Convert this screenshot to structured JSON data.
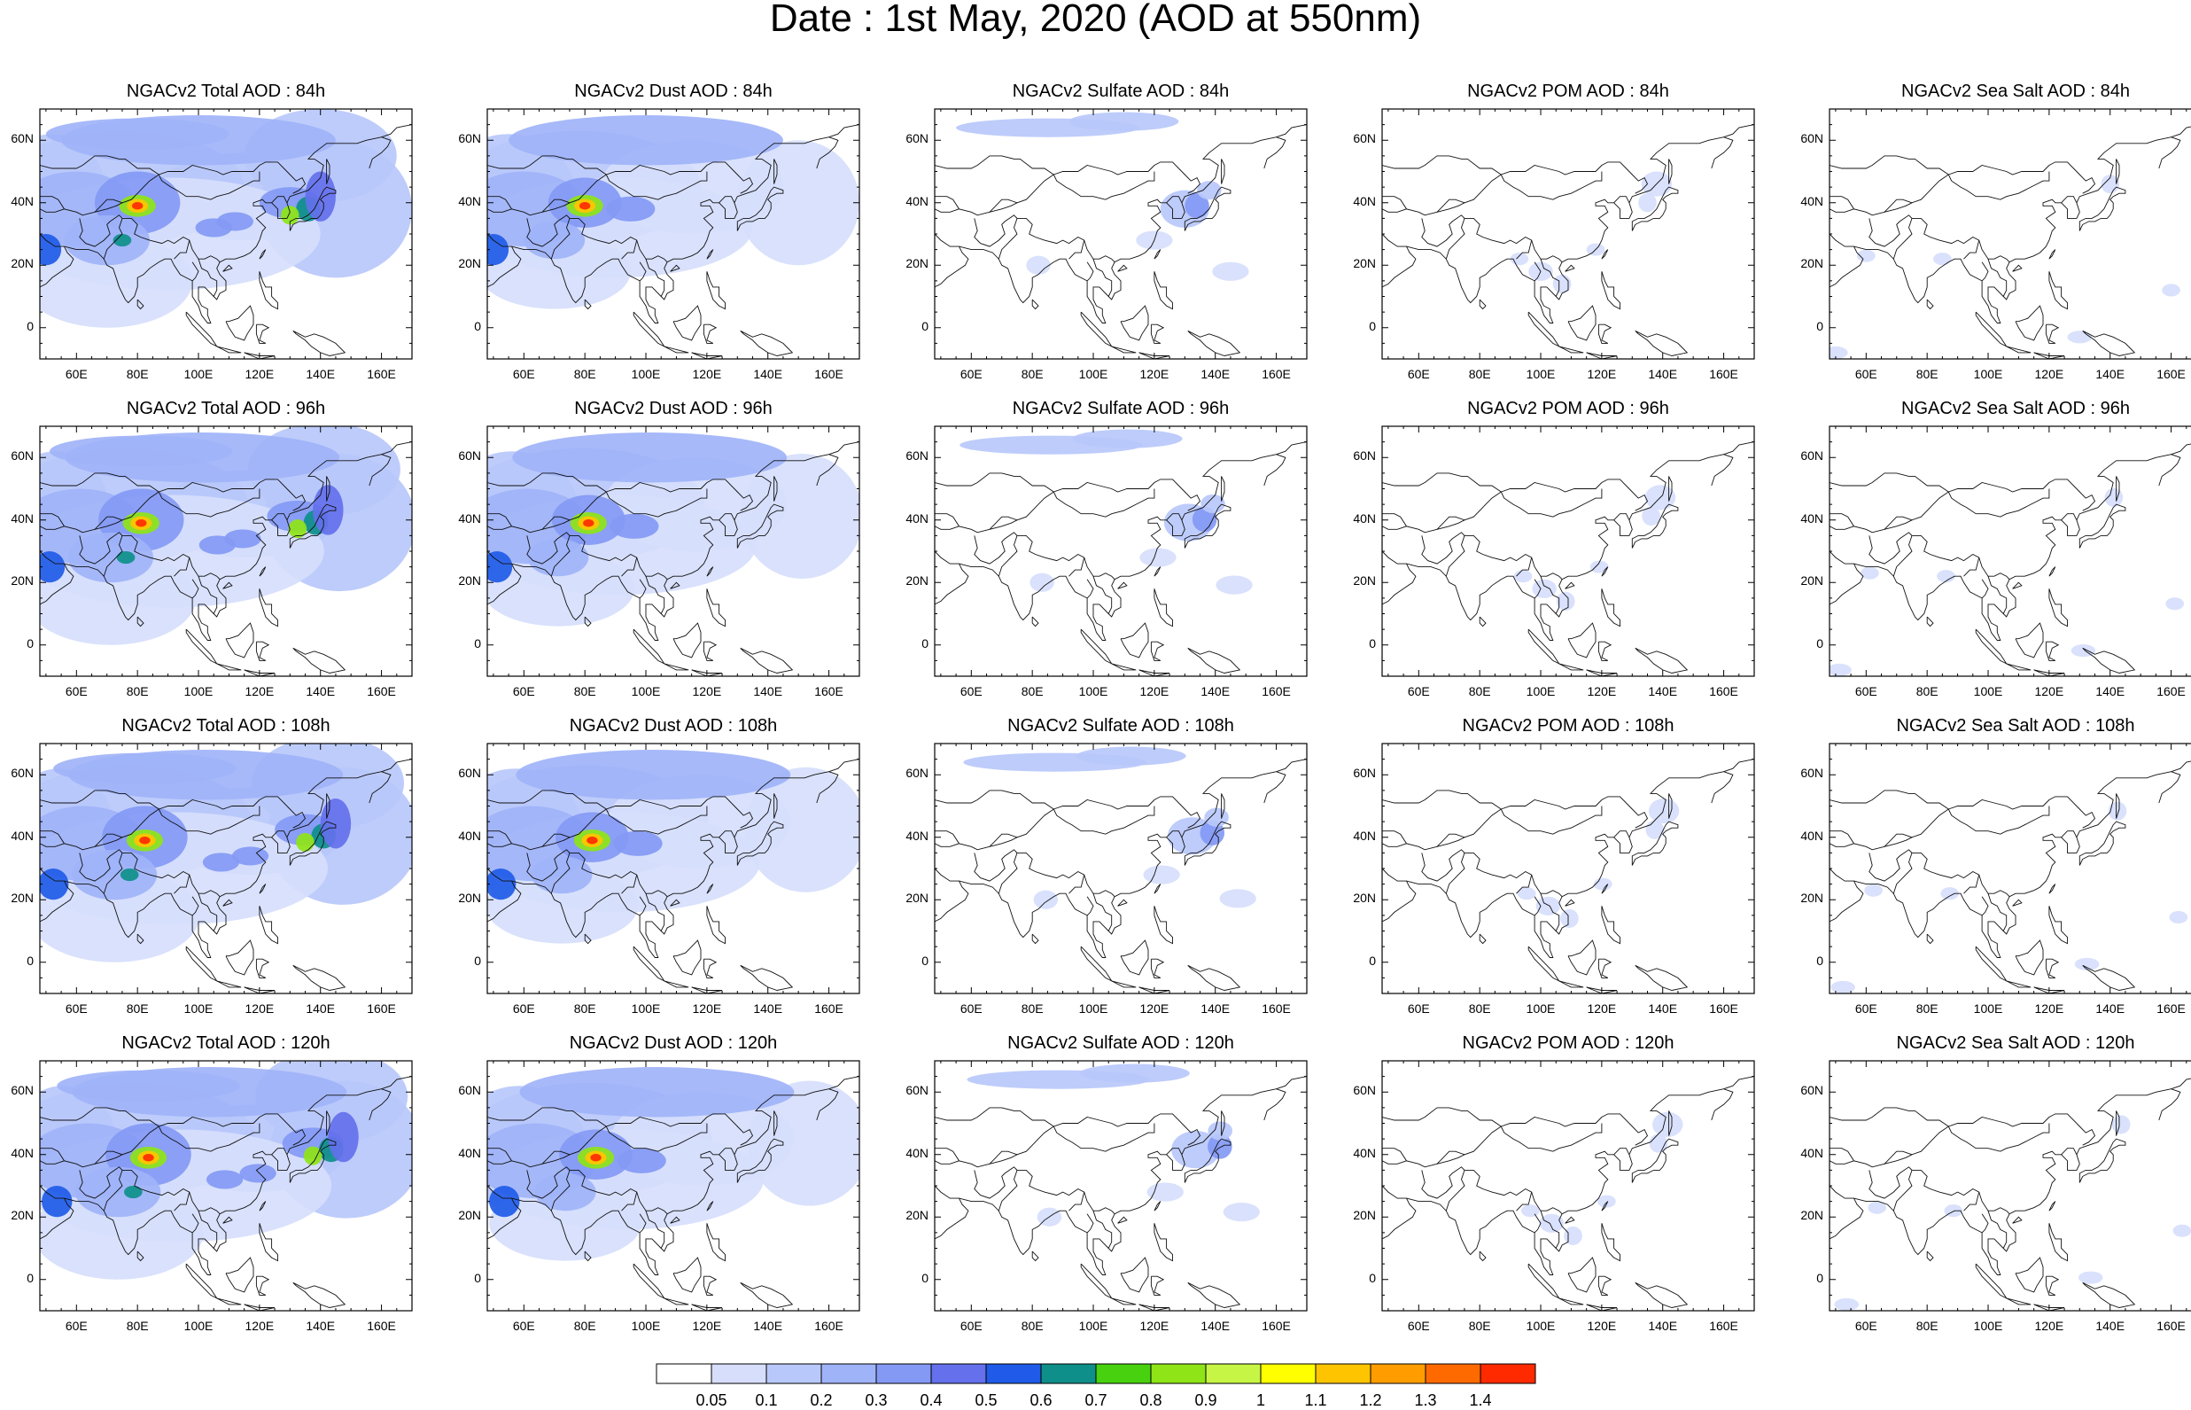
{
  "figure": {
    "title": "Date : 1st May, 2020 (AOD at 550nm)"
  },
  "lat_labels": [
    "60N",
    "40N",
    "20N",
    "0"
  ],
  "lon_labels": [
    "60E",
    "80E",
    "100E",
    "120E",
    "140E",
    "160E"
  ],
  "panels": [
    {
      "title": "NGACv2 Total AOD : 84h",
      "species": "total",
      "lead_hours": 84
    },
    {
      "title": "NGACv2 Dust AOD : 84h",
      "species": "dust",
      "lead_hours": 84
    },
    {
      "title": "NGACv2 Sulfate AOD : 84h",
      "species": "sulfate",
      "lead_hours": 84
    },
    {
      "title": "NGACv2 POM AOD : 84h",
      "species": "pom",
      "lead_hours": 84
    },
    {
      "title": "NGACv2 Sea Salt AOD : 84h",
      "species": "seasalt",
      "lead_hours": 84
    },
    {
      "title": "NGACv2 Total AOD : 96h",
      "species": "total",
      "lead_hours": 96
    },
    {
      "title": "NGACv2 Dust AOD : 96h",
      "species": "dust",
      "lead_hours": 96
    },
    {
      "title": "NGACv2 Sulfate AOD : 96h",
      "species": "sulfate",
      "lead_hours": 96
    },
    {
      "title": "NGACv2 POM AOD : 96h",
      "species": "pom",
      "lead_hours": 96
    },
    {
      "title": "NGACv2 Sea Salt AOD : 96h",
      "species": "seasalt",
      "lead_hours": 96
    },
    {
      "title": "NGACv2 Total AOD : 108h",
      "species": "total",
      "lead_hours": 108
    },
    {
      "title": "NGACv2 Dust AOD : 108h",
      "species": "dust",
      "lead_hours": 108
    },
    {
      "title": "NGACv2 Sulfate AOD : 108h",
      "species": "sulfate",
      "lead_hours": 108
    },
    {
      "title": "NGACv2 POM AOD : 108h",
      "species": "pom",
      "lead_hours": 108
    },
    {
      "title": "NGACv2 Sea Salt AOD : 108h",
      "species": "seasalt",
      "lead_hours": 108
    },
    {
      "title": "NGACv2 Total AOD : 120h",
      "species": "total",
      "lead_hours": 120
    },
    {
      "title": "NGACv2 Dust AOD : 120h",
      "species": "dust",
      "lead_hours": 120
    },
    {
      "title": "NGACv2 Sulfate AOD : 120h",
      "species": "sulfate",
      "lead_hours": 120
    },
    {
      "title": "NGACv2 POM AOD : 120h",
      "species": "pom",
      "lead_hours": 120
    },
    {
      "title": "NGACv2 Sea Salt  AOD : 120h",
      "species": "seasalt",
      "lead_hours": 120
    }
  ],
  "colorbar": {
    "labels": [
      "0.05",
      "0.1",
      "0.2",
      "0.3",
      "0.4",
      "0.5",
      "0.6",
      "0.7",
      "0.8",
      "0.9",
      "1",
      "1.1",
      "1.2",
      "1.3",
      "1.4"
    ],
    "colors": [
      "#ffffff",
      "#d6defc",
      "#b9c8fb",
      "#9fb3f8",
      "#8399f4",
      "#6470ec",
      "#1f5be8",
      "#0e8f8a",
      "#48d10e",
      "#8ee416",
      "#c6f545",
      "#ffff00",
      "#ffc400",
      "#ff9d00",
      "#ff6a00",
      "#ff2a00"
    ]
  }
}
